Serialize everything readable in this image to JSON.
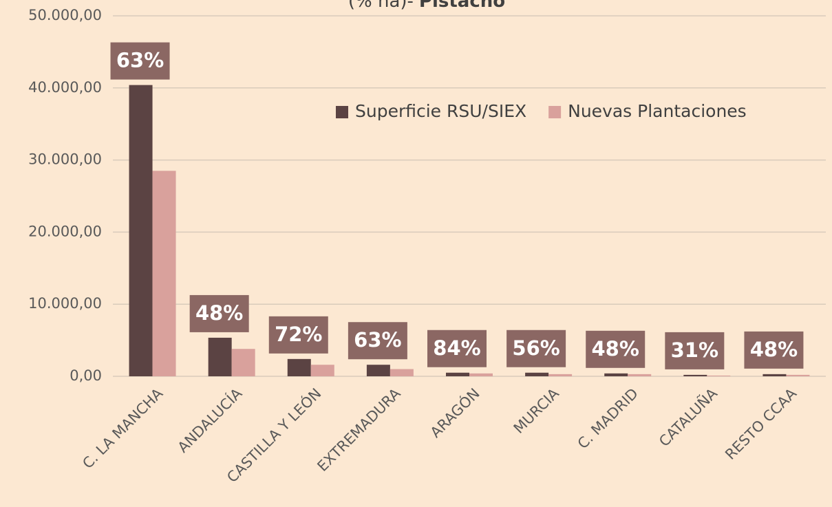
{
  "chart_data": {
    "type": "bar",
    "title": [
      "(% ha)-",
      "Pistacho"
    ],
    "categories": [
      "C. LA MANCHA",
      "ANDALUCÍA",
      "CASTILLA Y LEÓN",
      "EXTREMADURA",
      "ARAGÓN",
      "MURCIA",
      "C. MADRID",
      "CATALUÑA",
      "RESTO CCAA"
    ],
    "series": [
      {
        "name": "Superficie RSU/SIEX",
        "color": "#5b4343",
        "values": [
          40400,
          5350,
          2400,
          1600,
          500,
          500,
          400,
          200,
          300
        ]
      },
      {
        "name": "Nuevas Plantaciones",
        "color": "#d9a19c",
        "values": [
          28500,
          3800,
          1600,
          1000,
          400,
          300,
          300,
          100,
          200
        ]
      }
    ],
    "annotations": [
      "63%",
      "48%",
      "72%",
      "63%",
      "84%",
      "56%",
      "48%",
      "31%",
      "48%"
    ],
    "ylim": [
      0,
      50000
    ],
    "yticks": [
      {
        "value": 0,
        "label": "0,00"
      },
      {
        "value": 10000,
        "label": "10.000,00"
      },
      {
        "value": 20000,
        "label": "20.000,00"
      },
      {
        "value": 30000,
        "label": "30.000,00"
      },
      {
        "value": 40000,
        "label": "40.000,00"
      },
      {
        "value": 50000,
        "label": "50.000,00"
      }
    ],
    "grid": true,
    "legend": "upper right"
  }
}
